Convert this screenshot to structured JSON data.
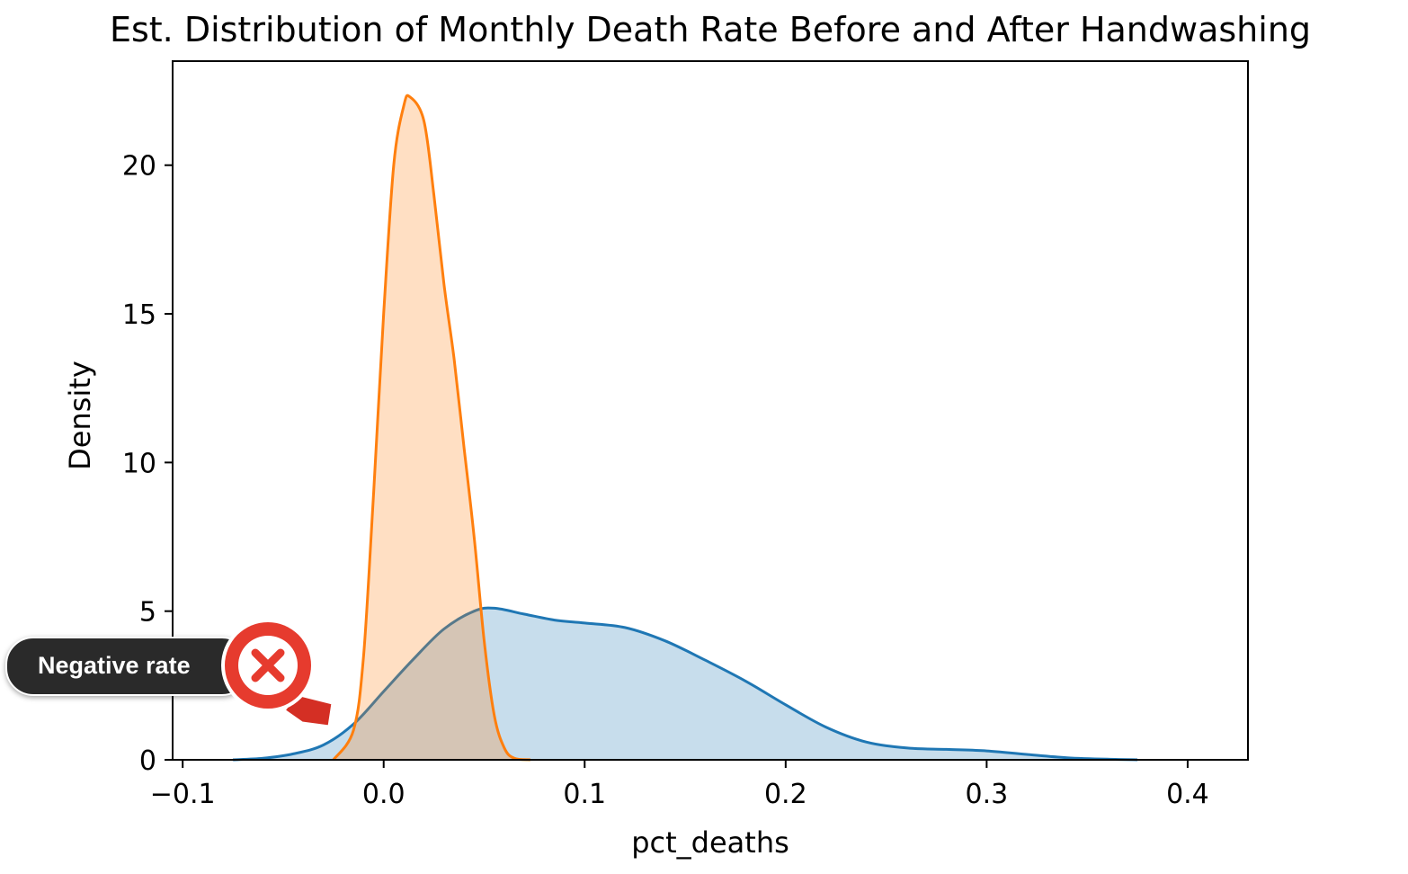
{
  "chart_data": {
    "type": "area",
    "title": "Est. Distribution of Monthly Death Rate Before and After Handwashing",
    "xlabel": "pct_deaths",
    "ylabel": "Density",
    "xlim": [
      -0.105,
      0.43
    ],
    "ylim": [
      0,
      23.5
    ],
    "x_ticks": [
      -0.1,
      0.0,
      0.1,
      0.2,
      0.3,
      0.4
    ],
    "x_tick_labels": [
      "−0.1",
      "0.0",
      "0.1",
      "0.2",
      "0.3",
      "0.4"
    ],
    "y_ticks": [
      0,
      5,
      10,
      15,
      20
    ],
    "y_tick_labels": [
      "0",
      "5",
      "10",
      "15",
      "20"
    ],
    "grid": false,
    "legend": "none",
    "series": [
      {
        "color": "#1f77b4",
        "x": [
          -0.075,
          -0.06,
          -0.045,
          -0.03,
          -0.015,
          0.0,
          0.015,
          0.03,
          0.045,
          0.055,
          0.07,
          0.085,
          0.1,
          0.12,
          0.14,
          0.16,
          0.18,
          0.2,
          0.22,
          0.24,
          0.26,
          0.28,
          0.3,
          0.32,
          0.34,
          0.36,
          0.375
        ],
        "y": [
          0.0,
          0.05,
          0.2,
          0.5,
          1.2,
          2.3,
          3.4,
          4.4,
          5.0,
          5.1,
          4.9,
          4.7,
          4.6,
          4.45,
          4.0,
          3.35,
          2.65,
          1.85,
          1.1,
          0.6,
          0.4,
          0.35,
          0.3,
          0.18,
          0.07,
          0.02,
          0.0
        ]
      },
      {
        "color": "#ff7f0e",
        "x": [
          -0.025,
          -0.015,
          -0.01,
          -0.005,
          0.0,
          0.005,
          0.01,
          0.013,
          0.02,
          0.025,
          0.03,
          0.035,
          0.04,
          0.045,
          0.05,
          0.055,
          0.06,
          0.065,
          0.073
        ],
        "y": [
          0.0,
          1.0,
          3.5,
          9.0,
          15.0,
          20.0,
          22.0,
          22.3,
          21.5,
          19.0,
          16.0,
          13.5,
          10.5,
          7.5,
          4.0,
          1.5,
          0.4,
          0.05,
          0.0
        ]
      }
    ]
  },
  "annotation": {
    "label": "Negative rate",
    "icon": "x-mark-magnifier-icon",
    "accent_color": "#e63b2e"
  }
}
